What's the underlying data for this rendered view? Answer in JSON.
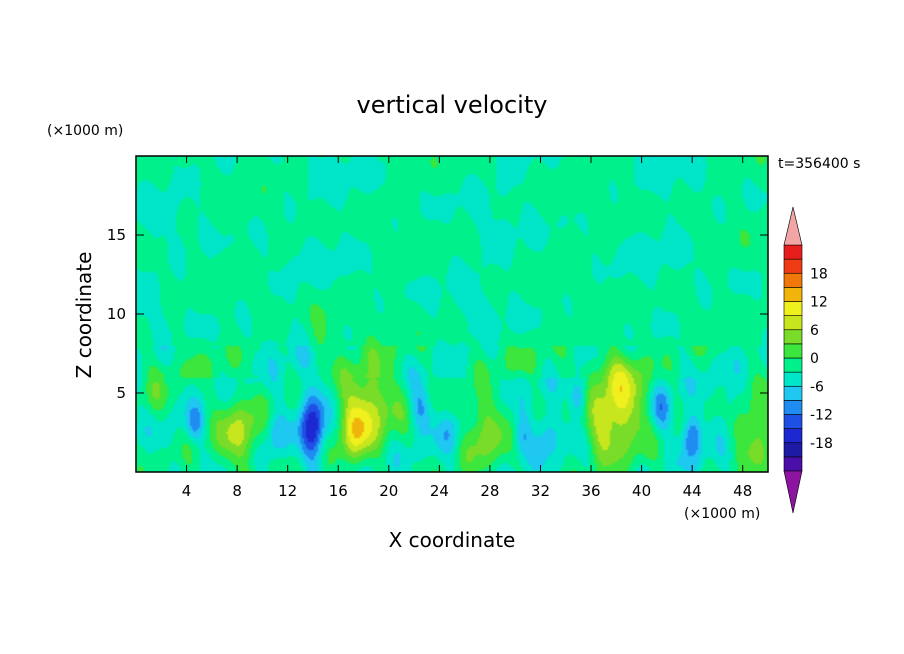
{
  "chart_data": {
    "type": "heatmap",
    "title": "vertical velocity",
    "xlabel": "X coordinate",
    "ylabel": "Z coordinate",
    "x_unit": "(×1000 m)",
    "y_unit": "(×1000 m)",
    "time_label": "t=356400 s",
    "xlim": [
      0,
      50
    ],
    "ylim": [
      0,
      20
    ],
    "x_ticks": [
      4,
      8,
      12,
      16,
      20,
      24,
      28,
      32,
      36,
      40,
      44,
      48
    ],
    "y_ticks": [
      5,
      10,
      15
    ],
    "colorbar": {
      "levels": [
        -21,
        -18,
        -15,
        -12,
        -9,
        -6,
        -3,
        0,
        3,
        6,
        9,
        12,
        15,
        18,
        21
      ],
      "labels": [
        18,
        12,
        6,
        0,
        -6,
        -12,
        -18
      ],
      "colors": [
        "#4b0ea8",
        "#1d1aa6",
        "#1e28d2",
        "#1e50e6",
        "#1e8cf0",
        "#1ec8f0",
        "#00e6c8",
        "#00f08c",
        "#3ce63c",
        "#78dc28",
        "#c8e61e",
        "#f0f01e",
        "#f0b40a",
        "#f0780a",
        "#f03c14",
        "#e61e1e"
      ],
      "under_color": "#8c14a0",
      "over_color": "#f2a5a5"
    },
    "features": [
      {
        "x": 1.6,
        "z": 4.8,
        "w": 3,
        "sx": 0.8,
        "sz": 1.2
      },
      {
        "x": 4.6,
        "z": 3.0,
        "w": -6,
        "sx": 0.5,
        "sz": 0.8
      },
      {
        "x": 8.2,
        "z": 2.4,
        "w": 9,
        "sx": 1.3,
        "sz": 1.6
      },
      {
        "x": 11.0,
        "z": 2.5,
        "w": -6,
        "sx": 0.6,
        "sz": 1.0
      },
      {
        "x": 14.0,
        "z": 3.0,
        "w": -14,
        "sx": 0.7,
        "sz": 1.7
      },
      {
        "x": 14.6,
        "z": 8.5,
        "w": 4,
        "sx": 0.6,
        "sz": 1.5
      },
      {
        "x": 17.3,
        "z": 2.5,
        "w": 9,
        "sx": 0.9,
        "sz": 1.4
      },
      {
        "x": 18.5,
        "z": 4.3,
        "w": 10,
        "sx": 1.6,
        "sz": 1.8
      },
      {
        "x": 22.5,
        "z": 4.0,
        "w": -7,
        "sx": 0.6,
        "sz": 1.0
      },
      {
        "x": 25.0,
        "z": 2.5,
        "w": -5,
        "sx": 0.7,
        "sz": 1.0
      },
      {
        "x": 27.5,
        "z": 2.6,
        "w": 8,
        "sx": 1.3,
        "sz": 1.6
      },
      {
        "x": 30.5,
        "z": 2.2,
        "w": -7,
        "sx": 0.5,
        "sz": 0.9
      },
      {
        "x": 32.5,
        "z": 2.6,
        "w": -6,
        "sx": 0.7,
        "sz": 1.0
      },
      {
        "x": 35.0,
        "z": 4.7,
        "w": -8,
        "sx": 0.5,
        "sz": 0.8
      },
      {
        "x": 37.0,
        "z": 2.5,
        "w": 5,
        "sx": 1.0,
        "sz": 1.2
      },
      {
        "x": 38.3,
        "z": 4.5,
        "w": 12,
        "sx": 1.6,
        "sz": 2.3
      },
      {
        "x": 41.5,
        "z": 4.0,
        "w": -7,
        "sx": 0.6,
        "sz": 1.1
      },
      {
        "x": 44.0,
        "z": 2.3,
        "w": -10,
        "sx": 0.6,
        "sz": 1.0
      },
      {
        "x": 47.0,
        "z": 4.3,
        "w": -5,
        "sx": 0.5,
        "sz": 1.0
      },
      {
        "x": 49.0,
        "z": 2.5,
        "w": 8,
        "sx": 1.2,
        "sz": 1.5
      }
    ]
  }
}
